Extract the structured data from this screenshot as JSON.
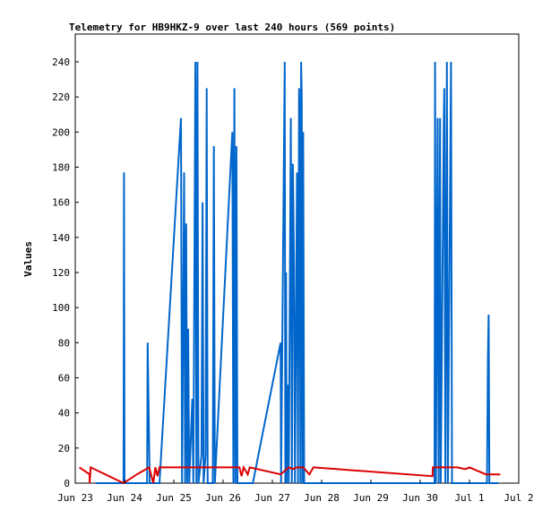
{
  "chart_data": {
    "type": "line",
    "title": "Telemetry for HB9HKZ-9 over last 240 hours (569 points)",
    "ylabel": "Values",
    "xlabel": "",
    "ylim": [
      0,
      255
    ],
    "y_ticks": [
      0,
      20,
      40,
      60,
      80,
      100,
      120,
      140,
      160,
      180,
      200,
      220,
      240
    ],
    "x_range": [
      "2023-06-23T00:00",
      "2023-07-02T00:00"
    ],
    "x_ticks": [
      {
        "label": "Jun 23",
        "t": "2023-06-23T00:00"
      },
      {
        "label": "Jun 24",
        "t": "2023-06-24T00:00"
      },
      {
        "label": "Jun 25",
        "t": "2023-06-25T00:00"
      },
      {
        "label": "Jun 26",
        "t": "2023-06-26T00:00"
      },
      {
        "label": "Jun 27",
        "t": "2023-06-27T00:00"
      },
      {
        "label": "Jun 28",
        "t": "2023-06-28T00:00"
      },
      {
        "label": "Jun 29",
        "t": "2023-06-29T00:00"
      },
      {
        "label": "Jun 30",
        "t": "2023-06-30T00:00"
      },
      {
        "label": "Jul 1",
        "t": "2023-07-01T00:00"
      },
      {
        "label": "Jul 2",
        "t": "2023-07-02T00:00"
      }
    ],
    "grid": false,
    "legend": "none",
    "series": [
      {
        "color": "#0066cc",
        "points": [
          [
            "2023-06-23T10:00",
            0
          ],
          [
            "2023-06-23T23:30",
            0
          ],
          [
            "2023-06-23T23:45",
            177
          ],
          [
            "2023-06-24T00:00",
            0
          ],
          [
            "2023-06-24T11:00",
            0
          ],
          [
            "2023-06-24T11:15",
            80
          ],
          [
            "2023-06-24T12:15",
            0
          ],
          [
            "2023-06-24T17:00",
            0
          ],
          [
            "2023-06-25T03:30",
            208
          ],
          [
            "2023-06-25T04:00",
            0
          ],
          [
            "2023-06-25T05:00",
            177
          ],
          [
            "2023-06-25T05:30",
            0
          ],
          [
            "2023-06-25T06:00",
            148
          ],
          [
            "2023-06-25T06:30",
            0
          ],
          [
            "2023-06-25T07:00",
            88
          ],
          [
            "2023-06-25T07:30",
            0
          ],
          [
            "2023-06-25T09:00",
            48
          ],
          [
            "2023-06-25T09:30",
            0
          ],
          [
            "2023-06-25T10:30",
            240
          ],
          [
            "2023-06-25T11:00",
            0
          ],
          [
            "2023-06-25T11:30",
            240
          ],
          [
            "2023-06-25T12:00",
            0
          ],
          [
            "2023-06-25T13:30",
            16
          ],
          [
            "2023-06-25T14:00",
            160
          ],
          [
            "2023-06-25T14:30",
            0
          ],
          [
            "2023-06-25T15:30",
            16
          ],
          [
            "2023-06-25T16:00",
            225
          ],
          [
            "2023-06-25T16:30",
            0
          ],
          [
            "2023-06-25T19:00",
            0
          ],
          [
            "2023-06-25T19:30",
            192
          ],
          [
            "2023-06-25T20:00",
            0
          ],
          [
            "2023-06-26T04:30",
            200
          ],
          [
            "2023-06-26T05:00",
            0
          ],
          [
            "2023-06-26T05:30",
            225
          ],
          [
            "2023-06-26T06:00",
            0
          ],
          [
            "2023-06-26T06:30",
            192
          ],
          [
            "2023-06-26T07:00",
            0
          ],
          [
            "2023-06-26T14:30",
            0
          ],
          [
            "2023-06-27T04:00",
            80
          ],
          [
            "2023-06-27T04:15",
            0
          ],
          [
            "2023-06-27T06:00",
            240
          ],
          [
            "2023-06-27T06:20",
            0
          ],
          [
            "2023-06-27T06:40",
            120
          ],
          [
            "2023-06-27T07:00",
            0
          ],
          [
            "2023-06-27T07:30",
            56
          ],
          [
            "2023-06-27T08:00",
            0
          ],
          [
            "2023-06-27T09:00",
            208
          ],
          [
            "2023-06-27T09:30",
            0
          ],
          [
            "2023-06-27T10:00",
            182
          ],
          [
            "2023-06-27T10:30",
            128
          ],
          [
            "2023-06-27T11:00",
            0
          ],
          [
            "2023-06-27T12:00",
            177
          ],
          [
            "2023-06-27T12:30",
            0
          ],
          [
            "2023-06-27T13:00",
            225
          ],
          [
            "2023-06-27T13:20",
            200
          ],
          [
            "2023-06-27T13:40",
            0
          ],
          [
            "2023-06-27T14:00",
            240
          ],
          [
            "2023-06-27T14:20",
            220
          ],
          [
            "2023-06-27T14:40",
            0
          ],
          [
            "2023-06-27T15:00",
            200
          ],
          [
            "2023-06-27T15:30",
            0
          ],
          [
            "2023-06-27T21:00",
            0
          ],
          [
            "2023-06-30T07:00",
            0
          ],
          [
            "2023-06-30T07:15",
            240
          ],
          [
            "2023-06-30T07:40",
            0
          ],
          [
            "2023-06-30T08:30",
            208
          ],
          [
            "2023-06-30T09:00",
            0
          ],
          [
            "2023-06-30T09:40",
            208
          ],
          [
            "2023-06-30T10:00",
            0
          ],
          [
            "2023-06-30T11:30",
            208
          ],
          [
            "2023-06-30T11:45",
            225
          ],
          [
            "2023-06-30T12:15",
            0
          ],
          [
            "2023-06-30T13:00",
            240
          ],
          [
            "2023-06-30T13:30",
            0
          ],
          [
            "2023-06-30T15:00",
            240
          ],
          [
            "2023-06-30T15:30",
            0
          ],
          [
            "2023-07-01T08:30",
            0
          ],
          [
            "2023-07-01T08:40",
            24
          ],
          [
            "2023-07-01T09:00",
            72
          ],
          [
            "2023-07-01T09:20",
            96
          ],
          [
            "2023-07-01T09:40",
            0
          ],
          [
            "2023-07-01T14:00",
            0
          ]
        ]
      },
      {
        "color": "#dd0000",
        "points": [
          [
            "2023-06-23T02:00",
            9
          ],
          [
            "2023-06-23T07:00",
            5
          ],
          [
            "2023-06-23T07:00",
            0
          ],
          [
            "2023-06-23T07:30",
            9
          ],
          [
            "2023-06-23T23:30",
            0
          ],
          [
            "2023-06-24T06:00",
            5
          ],
          [
            "2023-06-24T12:00",
            9
          ],
          [
            "2023-06-24T14:00",
            0
          ],
          [
            "2023-06-24T15:00",
            9
          ],
          [
            "2023-06-24T16:00",
            4
          ],
          [
            "2023-06-24T17:00",
            9
          ],
          [
            "2023-06-25T12:00",
            9
          ],
          [
            "2023-06-26T06:00",
            9
          ],
          [
            "2023-06-26T08:00",
            9
          ],
          [
            "2023-06-26T09:00",
            4
          ],
          [
            "2023-06-26T10:00",
            9
          ],
          [
            "2023-06-26T12:00",
            5
          ],
          [
            "2023-06-26T13:00",
            9
          ],
          [
            "2023-06-27T04:00",
            5
          ],
          [
            "2023-06-27T08:00",
            9
          ],
          [
            "2023-06-27T10:00",
            8
          ],
          [
            "2023-06-27T12:00",
            9
          ],
          [
            "2023-06-27T15:00",
            9
          ],
          [
            "2023-06-27T18:00",
            5
          ],
          [
            "2023-06-27T20:00",
            9
          ],
          [
            "2023-06-30T06:00",
            4
          ],
          [
            "2023-06-30T06:10",
            9
          ],
          [
            "2023-06-30T14:00",
            9
          ],
          [
            "2023-06-30T18:00",
            9
          ],
          [
            "2023-06-30T22:00",
            8
          ],
          [
            "2023-07-01T00:00",
            9
          ],
          [
            "2023-07-01T08:00",
            5
          ],
          [
            "2023-07-01T12:00",
            5
          ],
          [
            "2023-07-01T15:00",
            5
          ]
        ]
      }
    ]
  }
}
